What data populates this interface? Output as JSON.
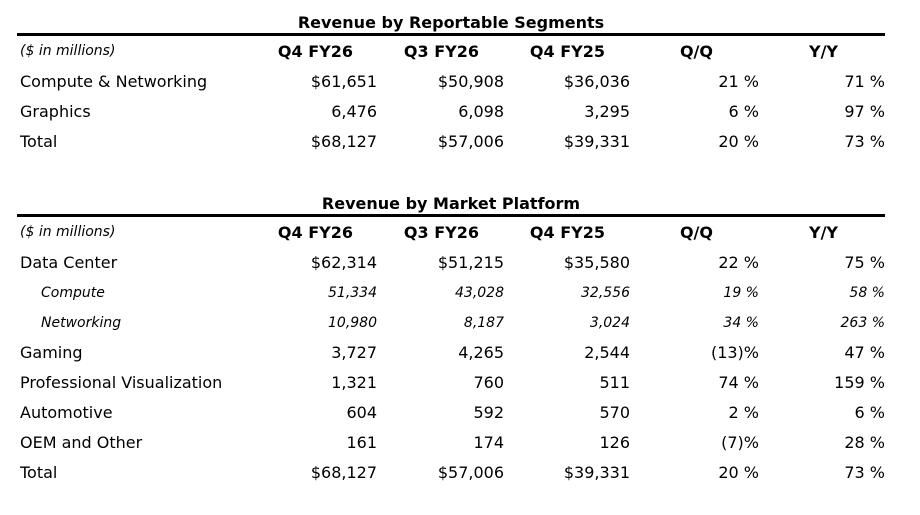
{
  "segments": {
    "title": "Revenue by Reportable Segments",
    "header": {
      "label": "($ in millions)",
      "c1": "Q4 FY26",
      "c2": "Q3 FY26",
      "c3": "Q4 FY25",
      "c4": "Q/Q",
      "c5": "Y/Y"
    },
    "rows": [
      {
        "label": "Compute & Networking",
        "c1": "$61,651",
        "c2": "$50,908",
        "c3": "$36,036",
        "c4": "21 %",
        "c5": "71 %"
      },
      {
        "label": "Graphics",
        "c1": "6,476",
        "c2": "6,098",
        "c3": "3,295",
        "c4": "6 %",
        "c5": "97 %"
      },
      {
        "label": "Total",
        "c1": "$68,127",
        "c2": "$57,006",
        "c3": "$39,331",
        "c4": "20 %",
        "c5": "73 %"
      }
    ]
  },
  "platform": {
    "title": "Revenue by Market Platform",
    "header": {
      "label": "($ in millions)",
      "c1": "Q4 FY26",
      "c2": "Q3 FY26",
      "c3": "Q4 FY25",
      "c4": "Q/Q",
      "c5": "Y/Y"
    },
    "rows": [
      {
        "label": "Data Center",
        "c1": "$62,314",
        "c2": "$51,215",
        "c3": "$35,580",
        "c4": "22 %",
        "c5": "75 %"
      },
      {
        "label": "Compute",
        "c1": "51,334",
        "c2": "43,028",
        "c3": "32,556",
        "c4": "19 %",
        "c5": "58 %"
      },
      {
        "label": "Networking",
        "c1": "10,980",
        "c2": "8,187",
        "c3": "3,024",
        "c4": "34 %",
        "c5": "263 %"
      },
      {
        "label": "Gaming",
        "c1": "3,727",
        "c2": "4,265",
        "c3": "2,544",
        "c4": "(13)%",
        "c5": "47 %"
      },
      {
        "label": "Professional Visualization",
        "c1": "1,321",
        "c2": "760",
        "c3": "511",
        "c4": "74 %",
        "c5": "159 %"
      },
      {
        "label": "Automotive",
        "c1": "604",
        "c2": "592",
        "c3": "570",
        "c4": "2 %",
        "c5": "6 %"
      },
      {
        "label": "OEM and Other",
        "c1": "161",
        "c2": "174",
        "c3": "126",
        "c4": "(7)%",
        "c5": "28 %"
      },
      {
        "label": "Total",
        "c1": "$68,127",
        "c2": "$57,006",
        "c3": "$39,331",
        "c4": "20 %",
        "c5": "73 %"
      }
    ]
  }
}
